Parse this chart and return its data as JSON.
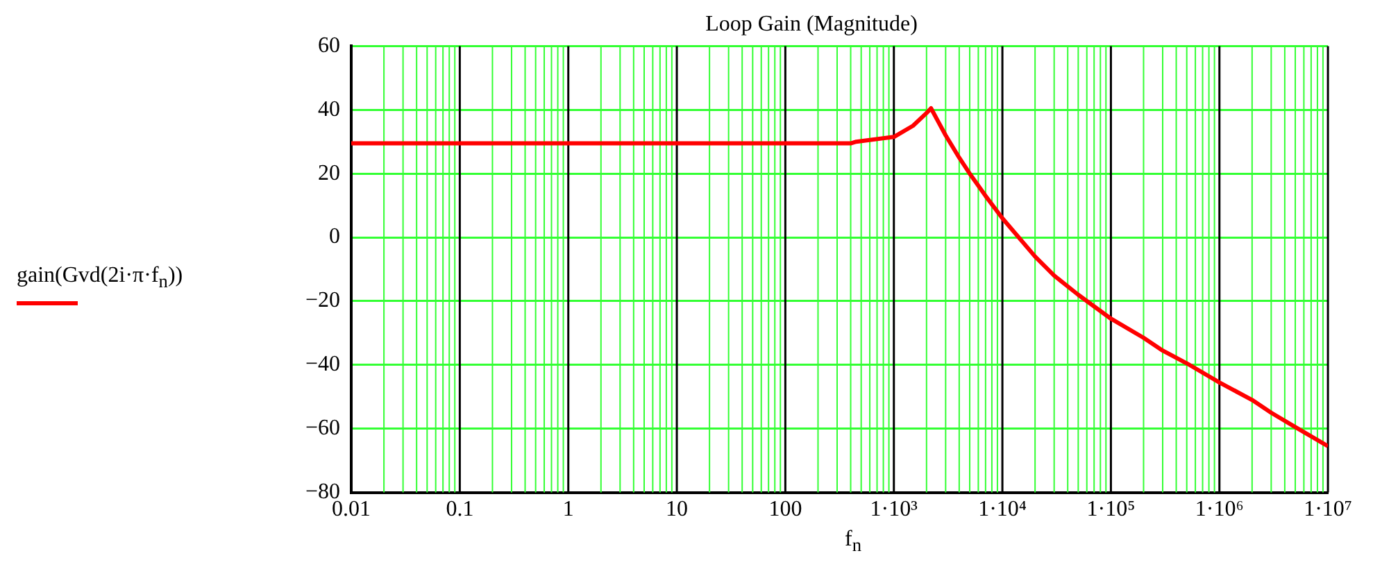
{
  "chart_data": {
    "type": "line",
    "title": "Loop Gain (Magnitude)",
    "xlabel": "f$_{n}$",
    "series": [
      {
        "name": "gain(Gvd(2i·π·f$_{n}$))",
        "color": "#ff0000",
        "x": [
          0.01,
          0.1,
          1,
          10,
          100,
          400,
          450,
          1000,
          1500,
          2000,
          2200,
          2500,
          3000,
          4000,
          5000,
          7000,
          10000,
          20000,
          30000,
          50000,
          100000,
          200000,
          300000,
          500000,
          1000000,
          2000000,
          3000000,
          5000000,
          10000000
        ],
        "values": [
          29.5,
          29.5,
          29.5,
          29.5,
          29.5,
          29.5,
          30,
          31.5,
          35,
          39,
          40.5,
          37,
          32,
          25,
          20,
          13,
          6,
          -6,
          -12,
          -18,
          -25.5,
          -31.5,
          -35.5,
          -39.5,
          -45.5,
          -51,
          -55,
          -59.5,
          -65.5
        ]
      }
    ],
    "xlim": [
      0.01,
      10000000
    ],
    "xticks": [
      0.01,
      {
        "value": 0.02,
        "label": null
      },
      {
        "value": 0.03,
        "label": null
      },
      {
        "value": 0.04,
        "label": null
      },
      {
        "value": 0.05,
        "label": null
      },
      {
        "value": 0.06,
        "label": null
      },
      {
        "value": 0.07,
        "label": null
      },
      {
        "value": 0.08,
        "label": null
      },
      {
        "value": 0.09,
        "label": null
      },
      0.1,
      {
        "value": 0.2,
        "label": null
      },
      {
        "value": 0.3,
        "label": null
      },
      {
        "value": 0.4,
        "label": null
      },
      {
        "value": 0.5,
        "label": null
      },
      {
        "value": 0.6,
        "label": null
      },
      {
        "value": 0.7,
        "label": null
      },
      {
        "value": 0.8,
        "label": null
      },
      {
        "value": 0.9,
        "label": null
      },
      1,
      {
        "value": 2,
        "label": null
      },
      {
        "value": 3,
        "label": null
      },
      {
        "value": 4,
        "label": null
      },
      {
        "value": 5,
        "label": null
      },
      {
        "value": 6,
        "label": null
      },
      {
        "value": 7,
        "label": null
      },
      {
        "value": 8,
        "label": null
      },
      {
        "value": 9,
        "label": null
      },
      10,
      {
        "value": 20,
        "label": null
      },
      {
        "value": 30,
        "label": null
      },
      {
        "value": 40,
        "label": null
      },
      {
        "value": 50,
        "label": null
      },
      {
        "value": 60,
        "label": null
      },
      {
        "value": 70,
        "label": null
      },
      {
        "value": 80,
        "label": null
      },
      {
        "value": 90,
        "label": null
      },
      100,
      {
        "value": 200,
        "label": null
      },
      {
        "value": 300,
        "label": null
      },
      {
        "value": 400,
        "label": null
      },
      {
        "value": 500,
        "label": null
      },
      {
        "value": 600,
        "label": null
      },
      {
        "value": 700,
        "label": null
      },
      {
        "value": 800,
        "label": null
      },
      {
        "value": 900,
        "label": null
      },
      {
        "value": 1000,
        "label": "1·10³"
      },
      {
        "value": 2000,
        "label": null
      },
      {
        "value": 3000,
        "label": null
      },
      {
        "value": 4000,
        "label": null
      },
      {
        "value": 5000,
        "label": null
      },
      {
        "value": 6000,
        "label": null
      },
      {
        "value": 7000,
        "label": null
      },
      {
        "value": 8000,
        "label": null
      },
      {
        "value": 9000,
        "label": null
      },
      {
        "value": 10000,
        "label": "1·10⁴"
      },
      {
        "value": 20000,
        "label": null
      },
      {
        "value": 30000,
        "label": null
      },
      {
        "value": 40000,
        "label": null
      },
      {
        "value": 50000,
        "label": null
      },
      {
        "value": 60000,
        "label": null
      },
      {
        "value": 70000,
        "label": null
      },
      {
        "value": 80000,
        "label": null
      },
      {
        "value": 90000,
        "label": null
      },
      {
        "value": 100000,
        "label": "1·10⁵"
      },
      {
        "value": 200000,
        "label": null
      },
      {
        "value": 300000,
        "label": null
      },
      {
        "value": 400000,
        "label": null
      },
      {
        "value": 500000,
        "label": null
      },
      {
        "value": 600000,
        "label": null
      },
      {
        "value": 700000,
        "label": null
      },
      {
        "value": 800000,
        "label": null
      },
      {
        "value": 900000,
        "label": null
      },
      {
        "value": 1000000,
        "label": "1·10⁶"
      },
      {
        "value": 2000000,
        "label": null
      },
      {
        "value": 3000000,
        "label": null
      },
      {
        "value": 4000000,
        "label": null
      },
      {
        "value": 5000000,
        "label": null
      },
      {
        "value": 6000000,
        "label": null
      },
      {
        "value": 7000000,
        "label": null
      },
      {
        "value": 8000000,
        "label": null
      },
      {
        "value": 9000000,
        "label": null
      },
      {
        "value": 10000000,
        "label": "1·10⁷"
      }
    ],
    "ylim": [
      -80,
      60
    ],
    "yticks": [
      -80,
      -60,
      -40,
      -20,
      0,
      20,
      40,
      60
    ],
    "log": "x",
    "grid": true,
    "legend": "left",
    "marker": "none",
    "line_style": "solid"
  }
}
